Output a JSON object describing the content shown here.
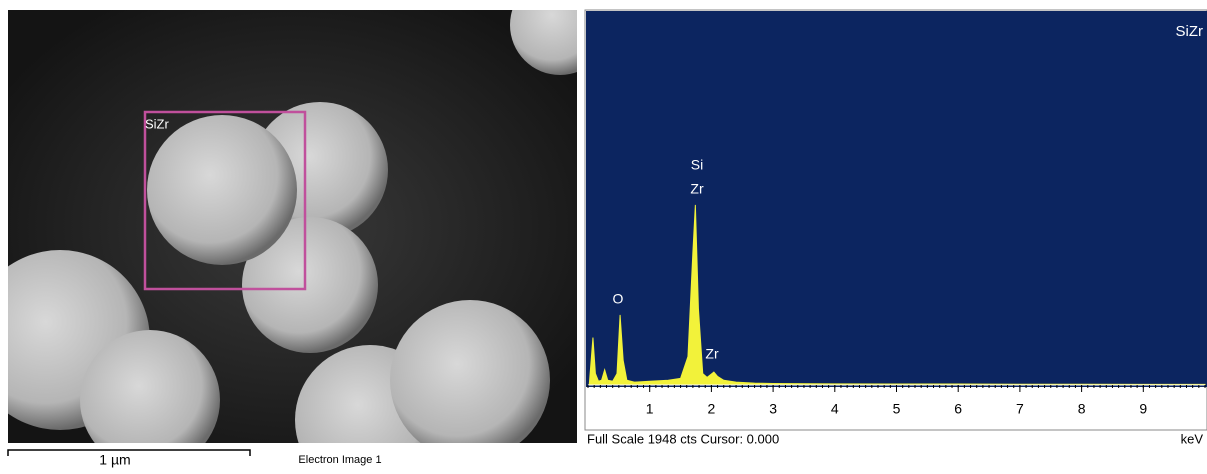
{
  "sem_image": {
    "region_label": "SiZr",
    "scale_bar_label": "1 µm",
    "caption": "Electron Image 1"
  },
  "spectrum": {
    "type": "area",
    "title": "SiZr",
    "color": "#f2f23a",
    "x": [
      0.02,
      0.08,
      0.12,
      0.17,
      0.22,
      0.27,
      0.32,
      0.4,
      0.47,
      0.52,
      0.57,
      0.63,
      0.75,
      1.0,
      1.3,
      1.5,
      1.62,
      1.7,
      1.74,
      1.79,
      1.86,
      1.93,
      1.99,
      2.04,
      2.1,
      2.2,
      2.4,
      2.7,
      3.0,
      4.0,
      5.0,
      6.0,
      7.0,
      8.0,
      9.0,
      10.0
    ],
    "values": [
      0,
      250,
      60,
      20,
      25,
      80,
      25,
      20,
      60,
      369,
      130,
      25,
      15,
      20,
      25,
      35,
      150,
      700,
      948,
      400,
      60,
      40,
      55,
      68,
      45,
      25,
      15,
      10,
      8,
      6,
      5,
      5,
      4,
      4,
      3,
      3
    ],
    "xlim": [
      0,
      10
    ],
    "ylim": [
      0,
      1948
    ],
    "xticks": [
      1,
      2,
      3,
      4,
      5,
      6,
      7,
      8,
      9
    ],
    "peak_labels": [
      "Si",
      "Zr",
      "O",
      "Zr"
    ],
    "x_unit": "keV",
    "footer": "Full Scale 1948 cts Cursor: 0.000"
  }
}
